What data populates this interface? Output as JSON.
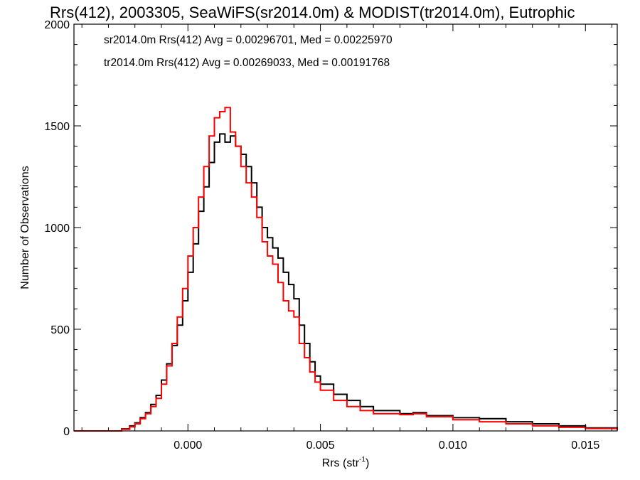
{
  "chart_data": {
    "type": "line",
    "title": "Rrs(412), 2003305, SeaWiFS(sr2014.0m) & MODIST(tr2014.0m), Eutrophic",
    "xlabel": "Rrs (str",
    "xlabel_sup": "-1",
    "xlabel_end": ")",
    "ylabel": "Number of Observations",
    "xlim": [
      -0.0043,
      0.0162
    ],
    "ylim": [
      0,
      2000
    ],
    "x_ticks": [
      0.0,
      0.005,
      0.01,
      0.015
    ],
    "x_tick_labels": [
      "0.000",
      "0.005",
      "0.010",
      "0.015"
    ],
    "y_ticks": [
      0,
      500,
      1000,
      1500,
      2000
    ],
    "y_tick_labels": [
      "0",
      "500",
      "1000",
      "1500",
      "2000"
    ],
    "grid": false,
    "annotations": [
      {
        "text": "sr2014.0m Rrs(412) Avg = 0.00296701, Med = 0.00225970",
        "color": "#000000"
      },
      {
        "text": "tr2014.0m Rrs(412) Avg = 0.00269033, Med = 0.00191768",
        "color": "#ff0000"
      }
    ],
    "series": [
      {
        "color": "#000000",
        "x": [
          -0.0043,
          -0.003,
          -0.0025,
          -0.0022,
          -0.002,
          -0.0018,
          -0.0016,
          -0.0014,
          -0.0012,
          -0.001,
          -0.0008,
          -0.0006,
          -0.0004,
          -0.0002,
          0.0,
          0.0002,
          0.0004,
          0.0006,
          0.0008,
          0.001,
          0.0012,
          0.0014,
          0.0016,
          0.0018,
          0.002,
          0.0022,
          0.0024,
          0.0026,
          0.0028,
          0.003,
          0.0032,
          0.0034,
          0.0036,
          0.0038,
          0.004,
          0.0042,
          0.0044,
          0.0046,
          0.0048,
          0.005,
          0.0055,
          0.006,
          0.0065,
          0.007,
          0.008,
          0.0085,
          0.009,
          0.01,
          0.011,
          0.012,
          0.013,
          0.014,
          0.015,
          0.0162
        ],
        "y": [
          0,
          0,
          10,
          25,
          40,
          65,
          90,
          130,
          175,
          250,
          330,
          420,
          520,
          640,
          780,
          920,
          1080,
          1200,
          1320,
          1420,
          1460,
          1420,
          1450,
          1400,
          1360,
          1300,
          1220,
          1100,
          1000,
          950,
          900,
          850,
          780,
          720,
          650,
          520,
          430,
          340,
          270,
          230,
          180,
          150,
          120,
          100,
          85,
          90,
          75,
          65,
          60,
          45,
          35,
          25,
          15,
          5
        ]
      },
      {
        "color": "#ff0000",
        "x": [
          -0.0043,
          -0.003,
          -0.0025,
          -0.0022,
          -0.002,
          -0.0018,
          -0.0016,
          -0.0014,
          -0.0012,
          -0.001,
          -0.0008,
          -0.0006,
          -0.0004,
          -0.0002,
          0.0,
          0.0002,
          0.0004,
          0.0006,
          0.0008,
          0.001,
          0.0012,
          0.0014,
          0.0016,
          0.0018,
          0.002,
          0.0022,
          0.0024,
          0.0026,
          0.0028,
          0.003,
          0.0032,
          0.0034,
          0.0036,
          0.0038,
          0.004,
          0.0042,
          0.0044,
          0.0046,
          0.0048,
          0.005,
          0.0055,
          0.006,
          0.0065,
          0.007,
          0.008,
          0.0085,
          0.009,
          0.01,
          0.011,
          0.012,
          0.013,
          0.014,
          0.015,
          0.0162
        ],
        "y": [
          0,
          0,
          8,
          20,
          35,
          60,
          85,
          120,
          160,
          230,
          320,
          430,
          560,
          700,
          860,
          1000,
          1150,
          1300,
          1450,
          1540,
          1570,
          1590,
          1470,
          1400,
          1300,
          1220,
          1150,
          1050,
          930,
          860,
          820,
          730,
          640,
          590,
          560,
          430,
          360,
          290,
          240,
          200,
          150,
          120,
          100,
          85,
          80,
          85,
          70,
          55,
          45,
          35,
          25,
          18,
          12,
          5
        ]
      }
    ]
  }
}
